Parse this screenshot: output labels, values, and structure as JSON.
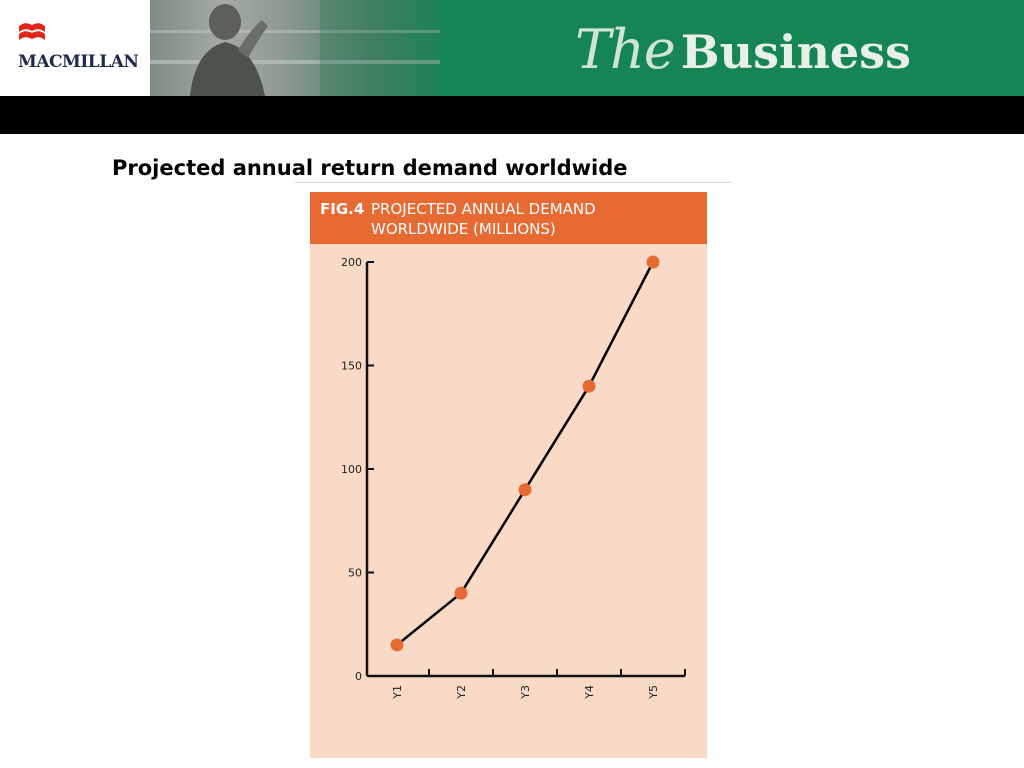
{
  "header": {
    "logo_text": "MACMILLAN",
    "brand_the": "The",
    "brand_business": "Business",
    "colors": {
      "green": "#148553",
      "logo_red": "#e1251b",
      "black_bar": "#000000"
    }
  },
  "slide": {
    "title": "Projected annual return demand worldwide"
  },
  "figure": {
    "label": "FIG.4",
    "caption_line1": "PROJECTED ANNUAL DEMAND",
    "caption_line2": "WORLDWIDE (MILLIONS)",
    "colors": {
      "header": "#e86a33",
      "background": "#f9dac7",
      "marker": "#e86a33",
      "line": "#000000"
    }
  },
  "chart_data": {
    "type": "line",
    "categories": [
      "Y1",
      "Y2",
      "Y3",
      "Y4",
      "Y5"
    ],
    "series": [
      {
        "values": [
          15,
          40,
          90,
          140,
          200
        ]
      }
    ],
    "ylim": [
      0,
      200
    ],
    "yticks": [
      0,
      50,
      100,
      150,
      200
    ],
    "grid": false,
    "legend": "none"
  }
}
